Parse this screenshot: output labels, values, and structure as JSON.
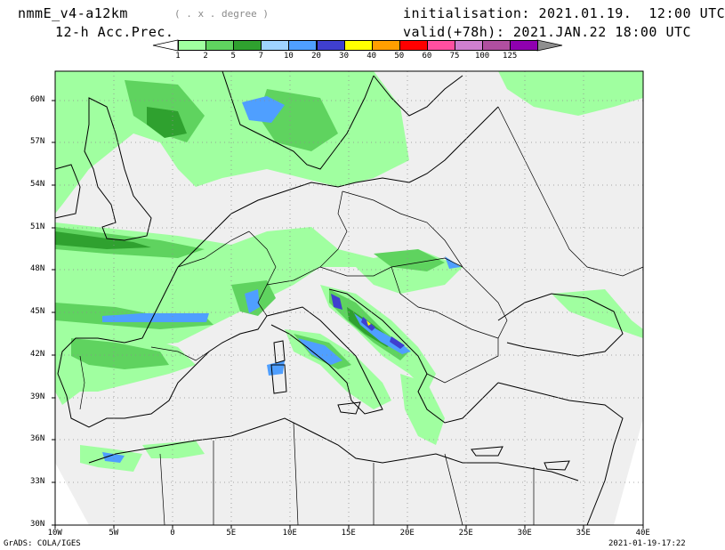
{
  "header": {
    "model": "nmmE_v4-a12km",
    "units": "( . x . degree )",
    "field": "12-h Acc.Prec.",
    "initialisation": "initialisation: 2021.01.19.  12:00 UTC",
    "valid": "valid(+78h): 2021.JAN.22 18:00 UTC"
  },
  "legend": {
    "labels": [
      "1",
      "2",
      "5",
      "7",
      "10",
      "20",
      "30",
      "40",
      "50",
      "60",
      "75",
      "100",
      "125"
    ],
    "colors": [
      "#a0ffa0",
      "#5fd35f",
      "#2fa12f",
      "#9fd3ff",
      "#4f9fff",
      "#3f3fcf",
      "#ffff00",
      "#ff9f00",
      "#ff0000",
      "#ff4fa0",
      "#cf7fcf",
      "#b04fa0",
      "#8f00af"
    ]
  },
  "axes": {
    "lat_labels": [
      "60N",
      "57N",
      "54N",
      "51N",
      "48N",
      "45N",
      "42N",
      "39N",
      "36N",
      "33N",
      "30N"
    ],
    "lon_labels": [
      "10W",
      "5W",
      "0",
      "5E",
      "10E",
      "15E",
      "20E",
      "25E",
      "30E",
      "35E",
      "40E"
    ]
  },
  "footer": {
    "left": "GrADS: COLA/IGES",
    "right": "2021-01-19-17:22"
  },
  "colors": {
    "background": "#efefef",
    "grid": "#8f8f8f",
    "coast": "#000000"
  }
}
